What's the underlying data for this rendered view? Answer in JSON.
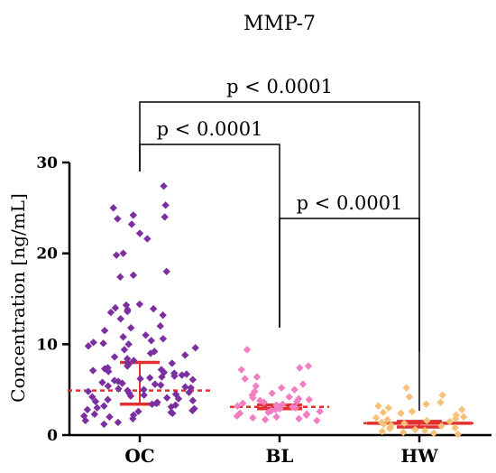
{
  "chart_data": {
    "type": "scatter",
    "title": "MMP-7",
    "ylabel": "Concentration [ng/mL]",
    "xlabel": "",
    "ylim": [
      0,
      30
    ],
    "yticks": [
      0,
      10,
      20,
      30
    ],
    "categories": [
      "OC",
      "BL",
      "HW"
    ],
    "grid": false,
    "series": [
      {
        "category": "OC",
        "color": "#7b2fa0",
        "median": 4.9,
        "q1": 3.4,
        "q3": 8.0,
        "values": [
          27.4,
          25.3,
          25.0,
          24.2,
          23.8,
          24.0,
          23.2,
          22.2,
          21.6,
          20.0,
          19.8,
          18.0,
          17.6,
          17.4,
          14.4,
          14.3,
          14.0,
          13.9,
          13.8,
          13.6,
          13.5,
          13.2,
          12.8,
          12.0,
          11.8,
          11.5,
          11.0,
          10.8,
          10.6,
          10.4,
          10.2,
          10.1,
          10.0,
          9.8,
          9.6,
          9.4,
          9.2,
          9.0,
          8.8,
          8.6,
          8.4,
          8.2,
          8.0,
          7.9,
          7.8,
          7.6,
          7.4,
          7.3,
          7.2,
          7.1,
          7.0,
          6.9,
          6.8,
          6.7,
          6.6,
          6.5,
          6.4,
          6.3,
          6.2,
          6.1,
          6.0,
          5.9,
          5.8,
          5.7,
          5.6,
          5.5,
          5.4,
          5.3,
          5.2,
          5.1,
          5.0,
          4.9,
          4.8,
          4.7,
          4.6,
          4.5,
          4.4,
          4.3,
          4.2,
          4.1,
          4.0,
          3.9,
          3.8,
          3.7,
          3.6,
          3.5,
          3.4,
          3.3,
          3.2,
          3.1,
          3.0,
          2.9,
          2.8,
          2.7,
          2.6,
          2.5,
          2.4,
          2.3,
          2.2,
          2.1,
          2.0,
          1.8,
          1.6,
          1.4,
          1.2
        ]
      },
      {
        "category": "BL",
        "color": "#f27fc2",
        "median": 3.1,
        "q1": 2.9,
        "q3": 3.3,
        "values": [
          9.4,
          7.6,
          7.4,
          7.2,
          6.4,
          6.2,
          5.6,
          5.4,
          5.2,
          5.0,
          4.8,
          4.6,
          4.4,
          4.2,
          4.1,
          4.0,
          3.9,
          3.8,
          3.7,
          3.6,
          3.5,
          3.4,
          3.3,
          3.2,
          3.1,
          3.0,
          2.9,
          2.8,
          2.7,
          2.6,
          2.5,
          2.4,
          2.3,
          2.2,
          2.1,
          2.0,
          1.9,
          1.8,
          1.7,
          1.6
        ]
      },
      {
        "category": "HW",
        "color": "#f9c07a",
        "median": 1.3,
        "q1": 0.9,
        "q3": 1.5,
        "values": [
          5.2,
          4.4,
          4.2,
          3.6,
          3.4,
          3.2,
          3.0,
          2.8,
          2.6,
          2.5,
          2.4,
          2.2,
          2.0,
          1.9,
          1.8,
          1.7,
          1.6,
          1.5,
          1.4,
          1.3,
          1.2,
          1.1,
          1.0,
          0.9,
          0.8,
          0.7,
          0.6,
          0.5,
          0.4,
          0.3,
          0.2,
          0.1
        ]
      }
    ],
    "comparisons": [
      {
        "from": "OC",
        "to": "HW",
        "label": "p < 0.0001"
      },
      {
        "from": "OC",
        "to": "BL",
        "label": "p < 0.0001"
      },
      {
        "from": "BL",
        "to": "HW",
        "label": "p < 0.0001"
      }
    ],
    "colors": {
      "median_line": "#e23030",
      "quartile_line": "#e23030",
      "axis": "#000000"
    }
  }
}
